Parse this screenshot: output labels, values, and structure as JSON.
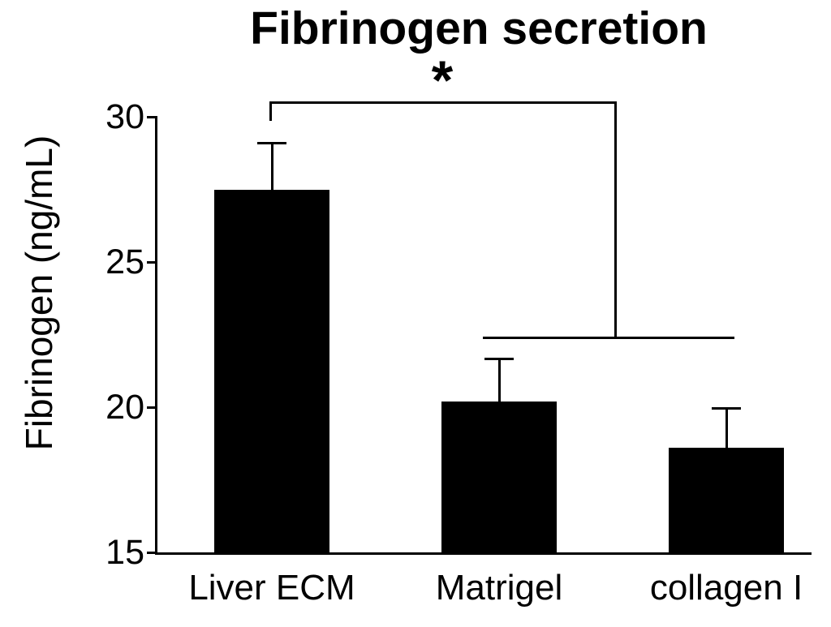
{
  "figure": {
    "background": "#ffffff",
    "ink_color": "#000000"
  },
  "chart_data": {
    "type": "bar",
    "title": "Fibrinogen secretion",
    "ylabel": "Fibrinogen (ng/mL)",
    "xlabel": "",
    "categories": [
      "Liver ECM",
      "Matrigel",
      "collagen I"
    ],
    "values": [
      27.5,
      20.2,
      18.6
    ],
    "errors_plus": [
      1.6,
      1.45,
      1.35
    ],
    "ylim": [
      15,
      30
    ],
    "yticks": [
      15,
      20,
      25,
      30
    ],
    "grid": false,
    "legend_position": "none",
    "bar_color": "#000000",
    "significance": {
      "label": "*",
      "from": "Liver ECM",
      "to": [
        "Matrigel",
        "collagen I"
      ]
    }
  }
}
